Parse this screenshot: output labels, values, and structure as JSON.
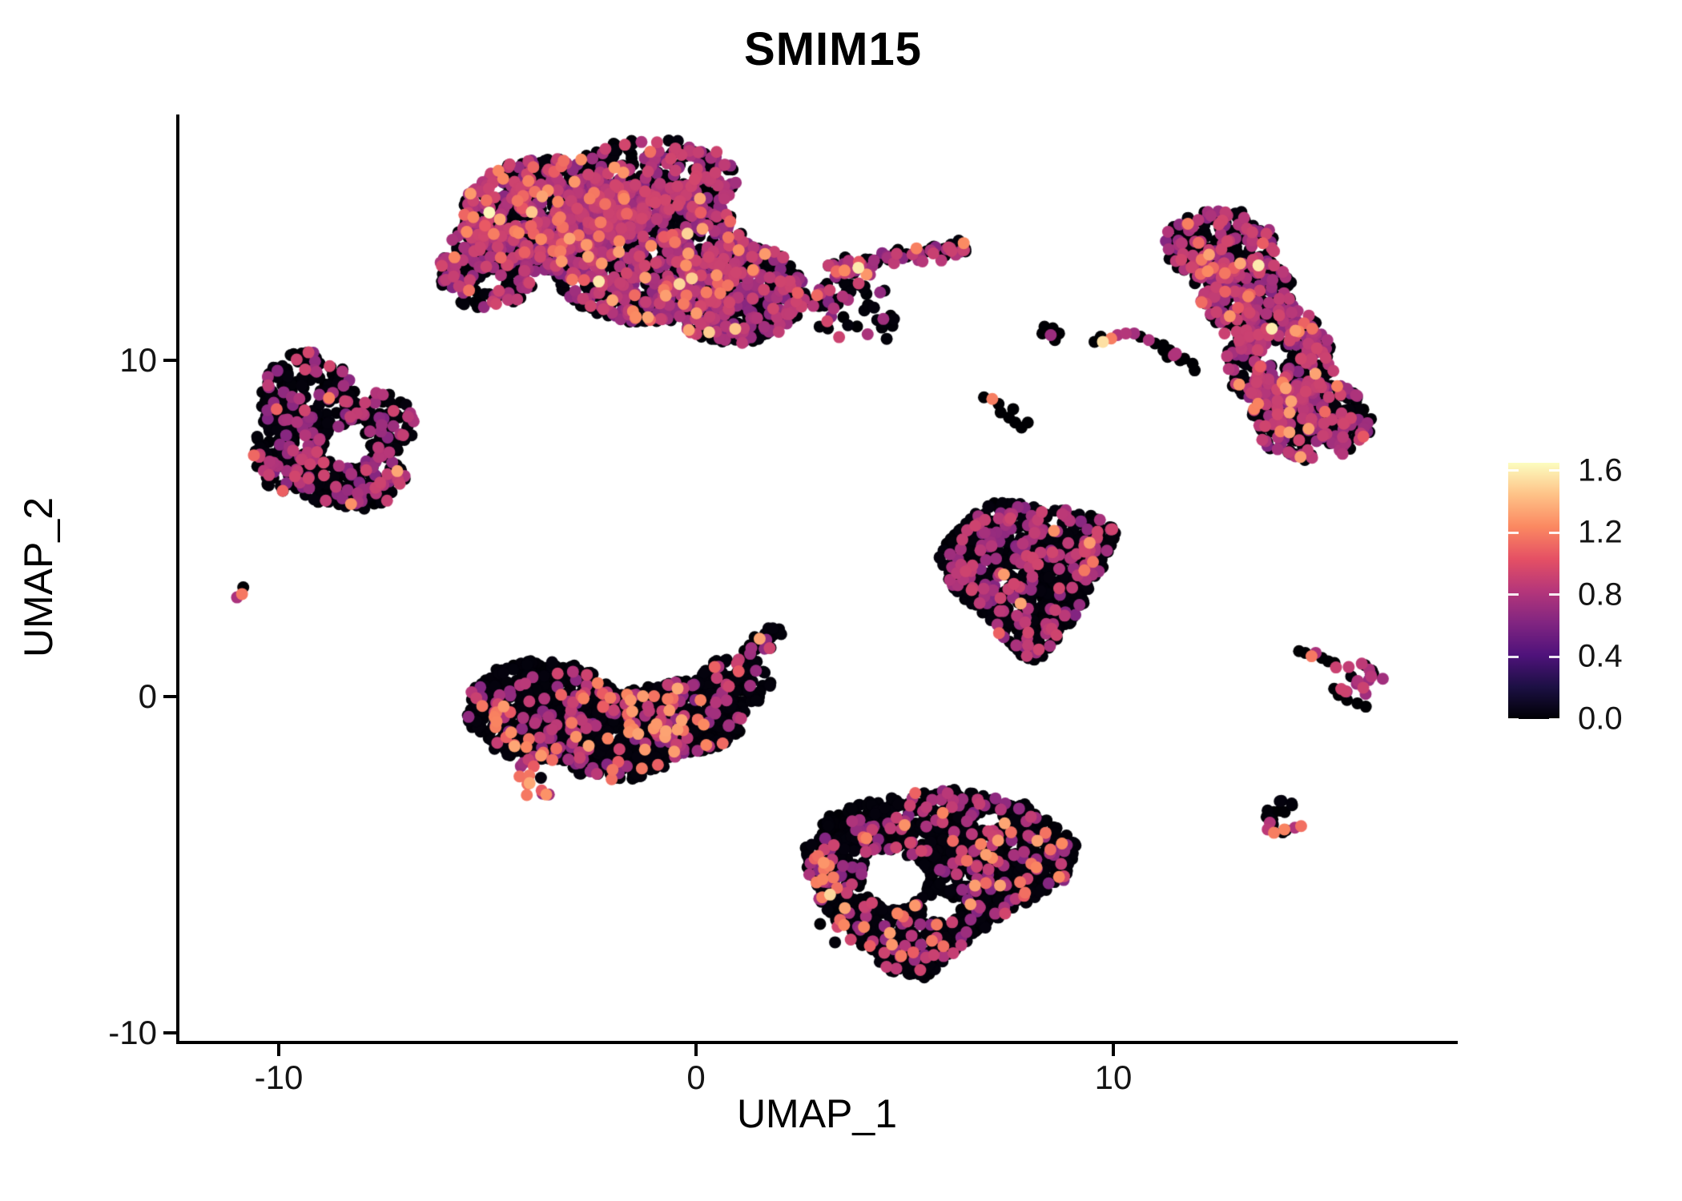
{
  "title": "SMIM15",
  "axes": {
    "x_label": "UMAP_1",
    "y_label": "UMAP_2",
    "x_ticks": [
      "-10",
      "0",
      "10"
    ],
    "y_ticks": [
      "10",
      "0",
      "-10"
    ]
  },
  "legend": {
    "tick_labels": [
      "1.6",
      "1.2",
      "0.8",
      "0.4",
      "0.0"
    ],
    "tick_values": [
      1.6,
      1.2,
      0.8,
      0.4,
      0.0
    ],
    "vmin": 0.0,
    "vmax": 1.65
  },
  "colors": {
    "colormap": "magma",
    "stops": [
      "#000004",
      "#1c1044",
      "#4f127b",
      "#812581",
      "#b5367a",
      "#e55064",
      "#fb8861",
      "#fec287",
      "#fcfdbf"
    ],
    "background": "#ffffff",
    "axis": "#000000",
    "text": "#141414"
  },
  "chart_data": {
    "type": "scatter",
    "title": "SMIM15",
    "xlabel": "UMAP_1",
    "ylabel": "UMAP_2",
    "x_tick_values": [
      -10,
      0,
      10
    ],
    "y_tick_values": [
      10,
      0,
      -10
    ],
    "x_range": [
      -12.4,
      18.2
    ],
    "y_range": [
      -10.3,
      17.3
    ],
    "point_radius_px": 7.5,
    "value_bands": {
      "low": [
        0.0,
        0.03
      ],
      "mid": [
        0.62,
        0.95
      ],
      "high": [
        1.05,
        1.35
      ],
      "top": [
        1.45,
        1.65
      ]
    },
    "clusters": [
      {
        "name": "top-center-large",
        "mix": {
          "low": 0.55,
          "mid": 0.41,
          "high": 0.037,
          "top": 0.003
        },
        "holes": [],
        "parts": [
          {
            "kind": "ellipse",
            "cx": -3.6,
            "cy": 14.3,
            "rx": 2.0,
            "ry": 1.7,
            "n": 700
          },
          {
            "kind": "ellipse",
            "cx": -1.2,
            "cy": 13.2,
            "rx": 2.4,
            "ry": 2.1,
            "n": 900
          },
          {
            "kind": "ellipse",
            "cx": 0.9,
            "cy": 12.0,
            "rx": 1.7,
            "ry": 1.5,
            "n": 450
          },
          {
            "kind": "ellipse",
            "cx": -1.0,
            "cy": 15.4,
            "rx": 2.0,
            "ry": 1.2,
            "n": 260
          },
          {
            "kind": "ellipse",
            "cx": -5.0,
            "cy": 12.8,
            "rx": 1.2,
            "ry": 1.3,
            "n": 180
          },
          {
            "kind": "line",
            "x1": 3.2,
            "y1": 12.7,
            "x2": 6.5,
            "y2": 13.4,
            "t": 0.35,
            "n": 90
          },
          {
            "kind": "line",
            "x1": 2.5,
            "y1": 11.6,
            "x2": 4.4,
            "y2": 12.5,
            "t": 0.5,
            "n": 42,
            "mix": {
              "low": 0.75,
              "mid": 0.23,
              "high": 0.02,
              "top": 0
            }
          },
          {
            "kind": "ellipse",
            "cx": 3.9,
            "cy": 11.0,
            "rx": 1.0,
            "ry": 0.7,
            "n": 22,
            "mix": {
              "low": 0.8,
              "mid": 0.2,
              "high": 0,
              "top": 0
            }
          }
        ]
      },
      {
        "name": "left-ring",
        "mix": {
          "low": 0.73,
          "mid": 0.263,
          "high": 0.007,
          "top": 0
        },
        "holes": [
          [
            -8.35,
            7.45,
            0.55,
            0.62
          ]
        ],
        "parts": [
          {
            "kind": "ellipse",
            "cx": -9.3,
            "cy": 8.9,
            "rx": 1.15,
            "ry": 1.35,
            "n": 180
          },
          {
            "kind": "ellipse",
            "cx": -9.7,
            "cy": 7.3,
            "rx": 0.9,
            "ry": 1.3,
            "n": 150
          },
          {
            "kind": "ellipse",
            "cx": -8.3,
            "cy": 6.6,
            "rx": 1.35,
            "ry": 1.05,
            "n": 190
          },
          {
            "kind": "ellipse",
            "cx": -7.6,
            "cy": 8.1,
            "rx": 0.85,
            "ry": 0.95,
            "n": 90
          }
        ]
      },
      {
        "name": "tiny-left-speck",
        "mix": {
          "low": 1,
          "mid": 0,
          "high": 0,
          "top": 0
        },
        "holes": [],
        "parts": [
          {
            "kind": "points",
            "pts": [
              [
                -10.85,
                3.25,
                0.0
              ],
              [
                -11.0,
                2.95,
                0.78
              ],
              [
                -10.88,
                3.05,
                1.18
              ]
            ]
          }
        ]
      },
      {
        "name": "mid-left-large",
        "mix": {
          "low": 0.85,
          "mid": 0.105,
          "high": 0.045,
          "top": 0
        },
        "holes": [],
        "parts": [
          {
            "kind": "ellipse",
            "cx": -3.7,
            "cy": -0.4,
            "rx": 1.8,
            "ry": 1.5,
            "n": 520
          },
          {
            "kind": "ellipse",
            "cx": -1.9,
            "cy": -1.1,
            "rx": 1.7,
            "ry": 1.4,
            "n": 420
          },
          {
            "kind": "ellipse",
            "cx": -0.3,
            "cy": -0.6,
            "rx": 1.5,
            "ry": 1.1,
            "n": 300
          },
          {
            "kind": "ellipse",
            "cx": 0.9,
            "cy": 0.4,
            "rx": 0.9,
            "ry": 0.75,
            "n": 110
          },
          {
            "kind": "line",
            "x1": 1.0,
            "y1": 0.8,
            "x2": 1.95,
            "y2": 2.05,
            "t": 0.3,
            "n": 35
          },
          {
            "kind": "line",
            "x1": -5.0,
            "y1": -0.2,
            "x2": -3.6,
            "y2": -3.0,
            "t": 0.5,
            "n": 22,
            "mix": {
              "low": 0.3,
              "mid": 0.32,
              "high": 0.38,
              "top": 0
            }
          }
        ]
      },
      {
        "name": "center-triangle",
        "mix": {
          "low": 0.8,
          "mid": 0.196,
          "high": 0.004,
          "top": 0
        },
        "holes": [],
        "parts": [
          {
            "kind": "poly",
            "n": 850,
            "pts": [
              [
                5.75,
                4.2
              ],
              [
                6.5,
                5.3
              ],
              [
                7.2,
                5.85
              ],
              [
                9.3,
                5.5
              ],
              [
                10.1,
                5.0
              ],
              [
                9.6,
                3.3
              ],
              [
                8.5,
                1.35
              ],
              [
                8.0,
                0.95
              ],
              [
                7.0,
                2.2
              ],
              [
                6.1,
                3.3
              ]
            ]
          }
        ]
      },
      {
        "name": "bottom-center",
        "mix": {
          "low": 0.82,
          "mid": 0.14,
          "high": 0.04,
          "top": 0
        },
        "holes": [
          [
            4.75,
            -5.45,
            0.8,
            0.8
          ],
          [
            5.9,
            -6.3,
            0.45,
            0.4
          ],
          [
            7.0,
            -3.7,
            0.35,
            0.3
          ]
        ],
        "parts": [
          {
            "kind": "poly",
            "n": 1250,
            "pts": [
              [
                2.6,
                -4.5
              ],
              [
                3.3,
                -3.4
              ],
              [
                4.6,
                -2.95
              ],
              [
                6.2,
                -2.75
              ],
              [
                7.9,
                -3.2
              ],
              [
                9.15,
                -4.35
              ],
              [
                8.9,
                -5.4
              ],
              [
                7.4,
                -6.5
              ],
              [
                6.3,
                -7.5
              ],
              [
                5.55,
                -8.4
              ],
              [
                4.6,
                -8.15
              ],
              [
                3.6,
                -7.0
              ],
              [
                2.7,
                -5.7
              ]
            ]
          },
          {
            "kind": "line",
            "x1": 2.85,
            "y1": -4.6,
            "x2": 3.5,
            "y2": -7.4,
            "t": 0.4,
            "n": 24,
            "mix": {
              "low": 0.2,
              "mid": 0.35,
              "high": 0.4,
              "top": 0.05
            }
          }
        ]
      },
      {
        "name": "right-crescent",
        "mix": {
          "low": 0.52,
          "mid": 0.44,
          "high": 0.035,
          "top": 0.005
        },
        "holes": [
          [
            13.9,
            10.2,
            0.3,
            0.35
          ]
        ],
        "parts": [
          {
            "kind": "ellipse",
            "cx": 12.55,
            "cy": 13.45,
            "rx": 1.35,
            "ry": 1.05,
            "n": 210
          },
          {
            "kind": "ellipse",
            "cx": 13.3,
            "cy": 11.8,
            "rx": 1.05,
            "ry": 1.3,
            "n": 190
          },
          {
            "kind": "ellipse",
            "cx": 14.0,
            "cy": 10.0,
            "rx": 1.3,
            "ry": 1.6,
            "n": 290
          },
          {
            "kind": "ellipse",
            "cx": 14.75,
            "cy": 8.2,
            "rx": 1.45,
            "ry": 1.2,
            "n": 260
          },
          {
            "kind": "ellipse",
            "cx": 12.4,
            "cy": 12.4,
            "rx": 0.6,
            "ry": 0.8,
            "n": 80
          },
          {
            "kind": "points",
            "pts": [
              [
                11.2,
                10.3,
                0.0
              ],
              [
                11.45,
                10.15,
                0.8
              ],
              [
                11.6,
                10.0,
                0.0
              ],
              [
                11.3,
                10.1,
                0.0
              ]
            ]
          }
        ]
      },
      {
        "name": "small-specks-row",
        "mix": {
          "low": 1,
          "mid": 0,
          "high": 0,
          "top": 0
        },
        "holes": [],
        "parts": [
          {
            "kind": "points",
            "pts": [
              [
                8.35,
                11.0,
                0.0
              ],
              [
                8.55,
                10.95,
                0.0
              ],
              [
                8.5,
                10.75,
                0.72
              ],
              [
                8.7,
                10.8,
                0.0
              ],
              [
                8.3,
                10.8,
                0.0
              ],
              [
                8.6,
                10.6,
                0.0
              ],
              [
                9.55,
                10.55,
                0.0
              ],
              [
                9.7,
                10.7,
                0.0
              ],
              [
                9.75,
                10.55,
                1.55
              ],
              [
                9.95,
                10.65,
                1.2
              ],
              [
                10.1,
                10.75,
                0.8
              ],
              [
                10.3,
                10.8,
                0.82
              ],
              [
                10.5,
                10.8,
                0.75
              ],
              [
                10.65,
                10.7,
                0.0
              ],
              [
                10.85,
                10.6,
                0.78
              ],
              [
                11.0,
                10.5,
                0.0
              ],
              [
                11.2,
                10.45,
                0.0
              ],
              [
                11.35,
                10.3,
                0.0
              ],
              [
                11.5,
                10.2,
                0.8
              ],
              [
                11.7,
                10.05,
                0.0
              ],
              [
                11.9,
                9.9,
                0.0
              ],
              [
                11.95,
                9.7,
                0.0
              ],
              [
                6.9,
                8.9,
                0.0
              ],
              [
                7.1,
                8.85,
                1.2
              ],
              [
                7.25,
                8.7,
                0.0
              ],
              [
                7.3,
                8.45,
                0.0
              ],
              [
                7.5,
                8.3,
                0.0
              ],
              [
                7.65,
                8.15,
                0.0
              ],
              [
                7.8,
                8.0,
                0.0
              ],
              [
                7.95,
                8.15,
                0.0
              ],
              [
                7.6,
                8.55,
                0.0
              ]
            ]
          }
        ]
      },
      {
        "name": "right-arrow",
        "mix": {
          "low": 0.5,
          "mid": 0.5,
          "high": 0,
          "top": 0
        },
        "holes": [],
        "parts": [
          {
            "kind": "points",
            "pts": [
              [
                14.45,
                1.35,
                0.0
              ],
              [
                14.6,
                1.3,
                0.0
              ],
              [
                14.75,
                1.2,
                1.18
              ],
              [
                14.85,
                1.3,
                0.78
              ],
              [
                15.0,
                1.15,
                0.0
              ],
              [
                15.15,
                1.05,
                0.0
              ],
              [
                15.3,
                1.0,
                0.0
              ]
            ]
          },
          {
            "kind": "ellipse",
            "cx": 15.75,
            "cy": 0.55,
            "rx": 0.8,
            "ry": 0.55,
            "n": 20
          },
          {
            "kind": "points",
            "pts": [
              [
                15.4,
                0.05,
                0.0
              ],
              [
                15.6,
                -0.1,
                0.0
              ],
              [
                15.85,
                -0.2,
                0.0
              ],
              [
                16.05,
                -0.3,
                0.0
              ]
            ]
          }
        ]
      },
      {
        "name": "tiny-bottom-right",
        "mix": {
          "low": 1,
          "mid": 0,
          "high": 0,
          "top": 0
        },
        "holes": [],
        "parts": [
          {
            "kind": "ellipse",
            "cx": 14.05,
            "cy": -3.55,
            "rx": 0.52,
            "ry": 0.5,
            "n": 14
          },
          {
            "kind": "points",
            "pts": [
              [
                13.7,
                -3.95,
                0.85
              ],
              [
                13.85,
                -4.05,
                1.2
              ],
              [
                14.1,
                -3.95,
                1.22
              ],
              [
                14.35,
                -3.9,
                0.8
              ],
              [
                14.5,
                -3.85,
                1.15
              ],
              [
                13.75,
                -3.75,
                0.82
              ]
            ]
          }
        ]
      }
    ]
  }
}
